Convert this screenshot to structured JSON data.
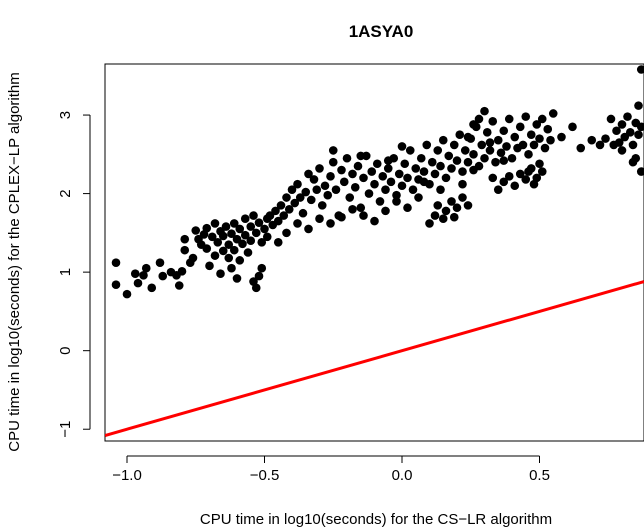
{
  "chart_data": {
    "type": "scatter",
    "title": "1ASYA0",
    "xlabel": "CPU time in log10(seconds) for the  CS−LR algorithm",
    "ylabel": "CPU time in log10(seconds) for the  CPLEX−LP algorithm",
    "xlim": [
      -1.08,
      0.88
    ],
    "ylim": [
      -1.15,
      3.65
    ],
    "x_ticks": [
      -1.0,
      -0.5,
      0.0,
      0.5
    ],
    "x_tick_labels": [
      "−1.0",
      "−0.5",
      "0.0",
      "0.5"
    ],
    "y_ticks": [
      -1,
      0,
      1,
      2,
      3
    ],
    "y_tick_labels": [
      "−1",
      "0",
      "1",
      "2",
      "3"
    ],
    "grid": false,
    "reference_line": {
      "description": "y = x",
      "color": "#ff0000",
      "points": [
        [
          -1.08,
          -1.08
        ],
        [
          0.88,
          0.88
        ]
      ]
    },
    "point_color": "#000000",
    "points": [
      [
        -1.04,
        0.84
      ],
      [
        -1.04,
        1.12
      ],
      [
        -1.0,
        0.72
      ],
      [
        -0.97,
        0.98
      ],
      [
        -0.96,
        0.86
      ],
      [
        -0.94,
        0.96
      ],
      [
        -0.93,
        1.05
      ],
      [
        -0.91,
        0.8
      ],
      [
        -0.88,
        1.12
      ],
      [
        -0.87,
        0.95
      ],
      [
        -0.84,
        1.0
      ],
      [
        -0.82,
        0.96
      ],
      [
        -0.81,
        0.83
      ],
      [
        -0.8,
        1.01
      ],
      [
        -0.79,
        1.42
      ],
      [
        -0.79,
        1.28
      ],
      [
        -0.77,
        1.12
      ],
      [
        -0.76,
        1.18
      ],
      [
        -0.75,
        1.53
      ],
      [
        -0.74,
        1.42
      ],
      [
        -0.73,
        1.35
      ],
      [
        -0.72,
        1.48
      ],
      [
        -0.71,
        1.3
      ],
      [
        -0.71,
        1.56
      ],
      [
        -0.7,
        1.08
      ],
      [
        -0.69,
        1.45
      ],
      [
        -0.68,
        1.62
      ],
      [
        -0.68,
        1.21
      ],
      [
        -0.67,
        1.38
      ],
      [
        -0.66,
        1.52
      ],
      [
        -0.65,
        1.27
      ],
      [
        -0.65,
        1.46
      ],
      [
        -0.64,
        1.58
      ],
      [
        -0.63,
        1.35
      ],
      [
        -0.63,
        1.18
      ],
      [
        -0.62,
        1.49
      ],
      [
        -0.61,
        1.62
      ],
      [
        -0.61,
        1.28
      ],
      [
        -0.6,
        1.42
      ],
      [
        -0.59,
        1.55
      ],
      [
        -0.59,
        1.15
      ],
      [
        -0.58,
        1.36
      ],
      [
        -0.57,
        1.68
      ],
      [
        -0.57,
        1.47
      ],
      [
        -0.56,
        1.25
      ],
      [
        -0.55,
        1.58
      ],
      [
        -0.55,
        1.4
      ],
      [
        -0.54,
        1.72
      ],
      [
        -0.54,
        0.88
      ],
      [
        -0.53,
        1.5
      ],
      [
        -0.53,
        0.8
      ],
      [
        -0.52,
        1.63
      ],
      [
        -0.52,
        0.95
      ],
      [
        -0.51,
        1.38
      ],
      [
        -0.51,
        1.05
      ],
      [
        -0.5,
        1.55
      ],
      [
        -0.49,
        1.68
      ],
      [
        -0.49,
        1.45
      ],
      [
        -0.48,
        1.72
      ],
      [
        -0.47,
        1.6
      ],
      [
        -0.46,
        1.78
      ],
      [
        -0.45,
        1.65
      ],
      [
        -0.44,
        1.85
      ],
      [
        -0.43,
        1.72
      ],
      [
        -0.42,
        1.95
      ],
      [
        -0.41,
        1.8
      ],
      [
        -0.4,
        2.05
      ],
      [
        -0.39,
        1.88
      ],
      [
        -0.38,
        2.12
      ],
      [
        -0.37,
        1.95
      ],
      [
        -0.36,
        1.75
      ],
      [
        -0.35,
        2.02
      ],
      [
        -0.34,
        2.25
      ],
      [
        -0.33,
        1.92
      ],
      [
        -0.32,
        2.18
      ],
      [
        -0.31,
        2.05
      ],
      [
        -0.3,
        2.32
      ],
      [
        -0.29,
        1.85
      ],
      [
        -0.28,
        2.1
      ],
      [
        -0.27,
        1.98
      ],
      [
        -0.26,
        2.22
      ],
      [
        -0.25,
        2.4
      ],
      [
        -0.24,
        2.05
      ],
      [
        -0.23,
        1.72
      ],
      [
        -0.22,
        2.3
      ],
      [
        -0.21,
        2.15
      ],
      [
        -0.2,
        2.45
      ],
      [
        -0.19,
        1.95
      ],
      [
        -0.18,
        2.25
      ],
      [
        -0.17,
        2.08
      ],
      [
        -0.16,
        2.35
      ],
      [
        -0.15,
        1.82
      ],
      [
        -0.14,
        2.2
      ],
      [
        -0.13,
        2.48
      ],
      [
        -0.12,
        2.0
      ],
      [
        -0.11,
        2.28
      ],
      [
        -0.1,
        2.12
      ],
      [
        -0.09,
        2.38
      ],
      [
        -0.08,
        1.9
      ],
      [
        -0.07,
        2.22
      ],
      [
        -0.06,
        2.05
      ],
      [
        -0.05,
        2.32
      ],
      [
        -0.04,
        2.15
      ],
      [
        -0.03,
        2.45
      ],
      [
        -0.02,
        1.98
      ],
      [
        -0.01,
        2.25
      ],
      [
        0.0,
        2.1
      ],
      [
        0.01,
        2.38
      ],
      [
        0.02,
        2.2
      ],
      [
        0.03,
        2.55
      ],
      [
        0.04,
        2.05
      ],
      [
        0.05,
        2.32
      ],
      [
        0.06,
        2.18
      ],
      [
        0.07,
        2.45
      ],
      [
        0.08,
        2.28
      ],
      [
        0.09,
        2.62
      ],
      [
        0.1,
        2.12
      ],
      [
        0.11,
        2.4
      ],
      [
        0.12,
        2.25
      ],
      [
        0.13,
        2.55
      ],
      [
        0.14,
        2.35
      ],
      [
        0.15,
        2.68
      ],
      [
        0.16,
        2.2
      ],
      [
        0.17,
        2.48
      ],
      [
        0.18,
        2.32
      ],
      [
        0.19,
        2.62
      ],
      [
        0.2,
        2.42
      ],
      [
        0.21,
        2.75
      ],
      [
        0.22,
        2.28
      ],
      [
        0.23,
        2.55
      ],
      [
        0.24,
        2.4
      ],
      [
        0.25,
        2.7
      ],
      [
        0.26,
        2.5
      ],
      [
        0.27,
        2.85
      ],
      [
        0.28,
        2.35
      ],
      [
        0.29,
        2.62
      ],
      [
        0.3,
        2.45
      ],
      [
        0.31,
        2.78
      ],
      [
        0.32,
        2.55
      ],
      [
        0.33,
        2.92
      ],
      [
        0.34,
        2.4
      ],
      [
        0.35,
        2.68
      ],
      [
        0.36,
        2.52
      ],
      [
        0.37,
        2.8
      ],
      [
        0.38,
        2.6
      ],
      [
        0.39,
        2.95
      ],
      [
        0.4,
        2.45
      ],
      [
        0.41,
        2.72
      ],
      [
        0.42,
        2.58
      ],
      [
        0.43,
        2.85
      ],
      [
        0.44,
        2.62
      ],
      [
        0.45,
        2.98
      ],
      [
        0.46,
        2.5
      ],
      [
        0.47,
        2.75
      ],
      [
        0.48,
        2.62
      ],
      [
        0.49,
        2.88
      ],
      [
        0.5,
        2.7
      ],
      [
        0.51,
        2.95
      ],
      [
        0.52,
        2.58
      ],
      [
        0.53,
        2.82
      ],
      [
        0.54,
        2.68
      ],
      [
        0.55,
        3.02
      ],
      [
        0.1,
        1.62
      ],
      [
        0.12,
        1.72
      ],
      [
        0.13,
        1.85
      ],
      [
        0.15,
        1.68
      ],
      [
        0.16,
        1.78
      ],
      [
        0.18,
        1.9
      ],
      [
        0.19,
        1.7
      ],
      [
        0.2,
        1.82
      ],
      [
        0.22,
        1.95
      ],
      [
        0.24,
        1.85
      ],
      [
        0.35,
        2.05
      ],
      [
        0.37,
        2.15
      ],
      [
        0.39,
        2.22
      ],
      [
        0.41,
        2.1
      ],
      [
        0.43,
        2.25
      ],
      [
        0.45,
        2.18
      ],
      [
        0.47,
        2.32
      ],
      [
        0.49,
        2.2
      ],
      [
        0.5,
        2.38
      ],
      [
        0.51,
        2.28
      ],
      [
        0.48,
        2.12
      ],
      [
        0.46,
        2.28
      ],
      [
        0.3,
        3.05
      ],
      [
        0.28,
        2.95
      ],
      [
        0.26,
        2.88
      ],
      [
        0.32,
        2.65
      ],
      [
        0.24,
        2.72
      ],
      [
        0.58,
        2.72
      ],
      [
        0.62,
        2.85
      ],
      [
        0.65,
        2.58
      ],
      [
        0.69,
        2.68
      ],
      [
        0.72,
        2.62
      ],
      [
        0.74,
        2.7
      ],
      [
        0.76,
        2.95
      ],
      [
        0.78,
        2.8
      ],
      [
        0.79,
        2.65
      ],
      [
        0.8,
        2.88
      ],
      [
        0.81,
        2.72
      ],
      [
        0.82,
        2.98
      ],
      [
        0.83,
        2.78
      ],
      [
        0.84,
        2.62
      ],
      [
        0.85,
        2.9
      ],
      [
        0.85,
        2.45
      ],
      [
        0.86,
        2.75
      ],
      [
        0.86,
        3.12
      ],
      [
        0.87,
        2.28
      ],
      [
        0.87,
        2.85
      ],
      [
        0.87,
        3.58
      ],
      [
        0.84,
        2.4
      ],
      [
        0.8,
        2.55
      ],
      [
        0.77,
        2.62
      ],
      [
        -0.62,
        1.05
      ],
      [
        -0.66,
        0.98
      ],
      [
        -0.6,
        0.92
      ],
      [
        -0.45,
        1.38
      ],
      [
        -0.42,
        1.5
      ],
      [
        -0.38,
        1.62
      ],
      [
        -0.34,
        1.55
      ],
      [
        -0.3,
        1.68
      ],
      [
        -0.26,
        1.62
      ],
      [
        -0.22,
        1.7
      ],
      [
        -0.18,
        1.8
      ],
      [
        -0.14,
        1.72
      ],
      [
        -0.1,
        1.65
      ],
      [
        -0.06,
        1.78
      ],
      [
        -0.02,
        1.9
      ],
      [
        0.02,
        1.82
      ],
      [
        0.06,
        1.95
      ],
      [
        0.0,
        2.6
      ],
      [
        -0.05,
        2.42
      ],
      [
        -0.15,
        2.48
      ],
      [
        -0.25,
        2.55
      ],
      [
        0.08,
        2.15
      ],
      [
        0.14,
        2.05
      ],
      [
        0.22,
        2.12
      ],
      [
        0.26,
        2.3
      ],
      [
        0.33,
        2.2
      ],
      [
        0.37,
        2.42
      ]
    ]
  }
}
